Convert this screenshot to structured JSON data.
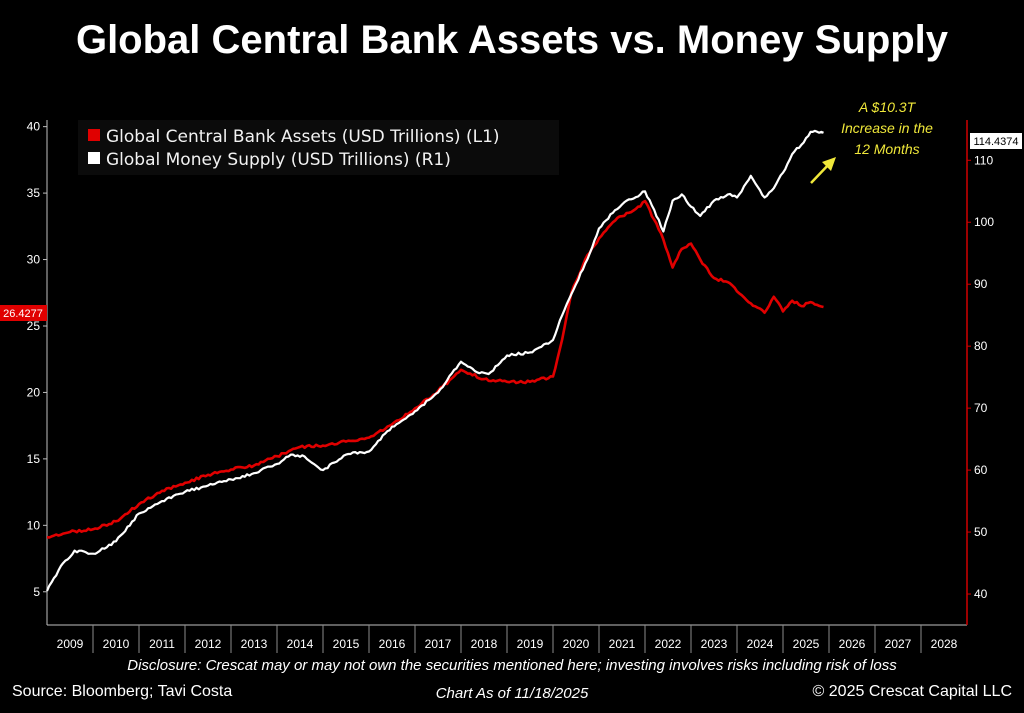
{
  "title": "Global Central Bank Assets vs. Money Supply",
  "footer": {
    "disclosure": "Disclosure: Crescat may or may not own the securities mentioned here; investing involves risks including risk of loss",
    "source": "Source: Bloomberg; Tavi Costa",
    "as_of": "Chart As of 11/18/2025",
    "copyright": "© 2025 Crescat Capital LLC"
  },
  "colors": {
    "assets": "#e00000",
    "money_supply": "#ffffff",
    "annotation": "#f0e83a",
    "background": "#000000"
  },
  "chart_data": {
    "type": "line",
    "title": "Global Central Bank Assets vs. Money Supply",
    "x_ticks": [
      "2009",
      "2010",
      "2011",
      "2012",
      "2013",
      "2014",
      "2015",
      "2016",
      "2017",
      "2018",
      "2019",
      "2020",
      "2021",
      "2022",
      "2023",
      "2024",
      "2025",
      "2026",
      "2027",
      "2028"
    ],
    "xlim": [
      2009.0,
      2029.0
    ],
    "y_left": {
      "ticks": [
        5,
        10,
        15,
        20,
        25,
        30,
        35,
        40
      ],
      "ylim": [
        2.5,
        40.5
      ]
    },
    "y_right": {
      "ticks": [
        40,
        50,
        60,
        70,
        80,
        90,
        100,
        110
      ],
      "ylim": [
        35.0,
        116.5
      ]
    },
    "grid": false,
    "legend_position": "top-left",
    "series": [
      {
        "name": "Global Central Bank Assets (USD Trillions) (L1)",
        "axis": "left",
        "color": "#e00000",
        "last_value_label": "26.4277",
        "x": [
          2009.0,
          2009.5,
          2010.0,
          2010.5,
          2011.0,
          2011.5,
          2012.0,
          2012.5,
          2013.0,
          2013.5,
          2014.0,
          2014.5,
          2015.0,
          2015.5,
          2016.0,
          2016.5,
          2017.0,
          2017.5,
          2018.0,
          2018.5,
          2019.0,
          2019.5,
          2020.0,
          2020.2,
          2020.4,
          2020.7,
          2021.0,
          2021.3,
          2021.6,
          2021.9,
          2022.0,
          2022.2,
          2022.4,
          2022.6,
          2022.8,
          2023.0,
          2023.2,
          2023.5,
          2023.8,
          2024.0,
          2024.3,
          2024.6,
          2024.8,
          2025.0,
          2025.2,
          2025.4,
          2025.6,
          2025.88
        ],
        "y": [
          9.1,
          9.5,
          9.7,
          10.3,
          11.6,
          12.6,
          13.2,
          13.8,
          14.2,
          14.5,
          15.2,
          15.9,
          16.0,
          16.3,
          16.6,
          17.6,
          18.8,
          20.1,
          21.7,
          21.0,
          20.8,
          20.8,
          21.2,
          24.0,
          27.5,
          30.0,
          31.6,
          32.8,
          33.5,
          34.0,
          34.4,
          33.0,
          31.5,
          29.4,
          30.8,
          31.2,
          30.0,
          28.6,
          28.3,
          27.6,
          26.7,
          26.0,
          27.2,
          26.1,
          26.9,
          26.5,
          26.8,
          26.4277
        ]
      },
      {
        "name": "Global Money Supply (USD Trillions) (R1)",
        "axis": "right",
        "color": "#ffffff",
        "last_value_label": "114.4374",
        "x": [
          2009.0,
          2009.3,
          2009.6,
          2010.0,
          2010.5,
          2011.0,
          2011.5,
          2012.0,
          2012.5,
          2013.0,
          2013.5,
          2014.0,
          2014.3,
          2014.6,
          2014.8,
          2015.0,
          2015.5,
          2016.0,
          2016.5,
          2017.0,
          2017.5,
          2018.0,
          2018.3,
          2018.6,
          2019.0,
          2019.5,
          2020.0,
          2020.2,
          2020.5,
          2020.8,
          2021.0,
          2021.3,
          2021.6,
          2021.9,
          2022.0,
          2022.2,
          2022.4,
          2022.6,
          2022.8,
          2023.0,
          2023.2,
          2023.5,
          2023.8,
          2024.0,
          2024.3,
          2024.6,
          2024.8,
          2025.0,
          2025.2,
          2025.4,
          2025.6,
          2025.88
        ],
        "y": [
          40.5,
          44.5,
          47.0,
          46.5,
          48.5,
          53.0,
          55.0,
          56.5,
          57.5,
          58.5,
          59.5,
          61.0,
          62.5,
          62.2,
          61.0,
          60.0,
          62.5,
          63.0,
          67.0,
          69.5,
          72.5,
          77.5,
          76.0,
          75.5,
          78.5,
          79.0,
          81.0,
          85.0,
          90.0,
          95.0,
          99.0,
          101.5,
          103.5,
          104.5,
          105.0,
          102.0,
          98.5,
          103.5,
          104.5,
          102.5,
          101.0,
          103.5,
          104.5,
          104.0,
          107.5,
          104.0,
          105.5,
          108.0,
          111.0,
          112.5,
          114.6,
          114.4374
        ]
      }
    ],
    "annotations": [
      {
        "lines": [
          "A $10.3T",
          "Increase in the",
          "12 Months"
        ],
        "arrow": true
      }
    ]
  }
}
